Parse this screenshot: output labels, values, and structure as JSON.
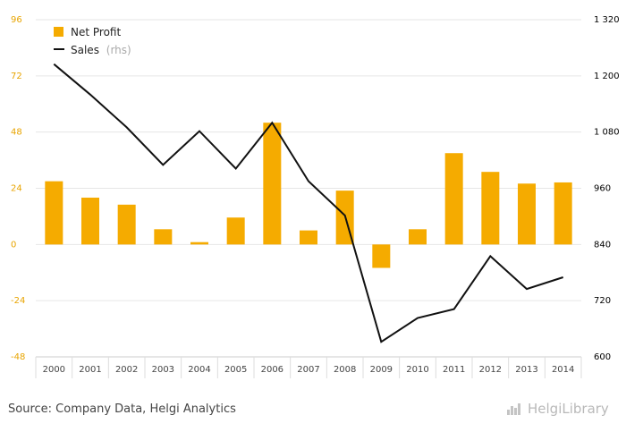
{
  "chart_data": {
    "type": "bar+line",
    "categories": [
      "2000",
      "2001",
      "2002",
      "2003",
      "2004",
      "2005",
      "2006",
      "2007",
      "2008",
      "2009",
      "2010",
      "2011",
      "2012",
      "2013",
      "2014"
    ],
    "series": [
      {
        "name": "Net Profit",
        "type": "bar",
        "axis": "left",
        "values": [
          27,
          20,
          17,
          6.5,
          1,
          11.5,
          52,
          6,
          23,
          -10,
          6.5,
          39,
          31,
          26,
          26.5
        ]
      },
      {
        "name": "Sales",
        "suffix": "(rhs)",
        "type": "line",
        "axis": "right",
        "values": [
          1225,
          1160,
          1090,
          1010,
          1082,
          1002,
          1100,
          975,
          902,
          632,
          683,
          702,
          815,
          745,
          770
        ]
      }
    ],
    "ylim_left": [
      -48,
      96
    ],
    "yticks_left": [
      "96",
      "72",
      "48",
      "24",
      "0",
      "-24",
      "-48"
    ],
    "ylim_right": [
      600,
      1320
    ],
    "yticks_right": [
      "1 320",
      "1 200",
      "1 080",
      "960",
      "840",
      "720",
      "600"
    ],
    "grid": true,
    "legend": "top-left",
    "colors": {
      "bar": "#f5ab00",
      "line": "#111111",
      "left_ticks": "#e8a400",
      "right_ticks": "#000000"
    }
  },
  "footer": {
    "source": "Source: Company Data, Helgi Analytics",
    "brand": "HelgiLibrary",
    "brand_icon": "helgi-logo-icon"
  }
}
